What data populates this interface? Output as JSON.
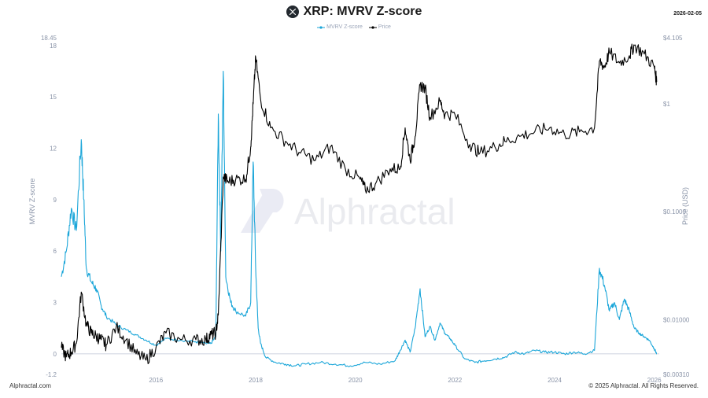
{
  "header": {
    "title": "XRP: MVRV Z-score",
    "date": "2026-02-05",
    "icon": "xrp-logo-icon"
  },
  "legend": [
    {
      "name": "MVRV Z-score",
      "color": "#1ba6d9"
    },
    {
      "name": "Price",
      "color": "#000000"
    }
  ],
  "watermark": "Alphractal",
  "footer": {
    "left": "Alphractal.com",
    "right": "© 2025 Alphractal. All Rights Reserved."
  },
  "chart_data": {
    "type": "line",
    "title": "XRP: MVRV Z-score",
    "left_axis": {
      "label": "MVRV Z-score",
      "range": [
        -1.2,
        18.45
      ],
      "ticks": [
        "18.45",
        "18",
        "15",
        "12",
        "9",
        "6",
        "3",
        "0",
        "-1.2"
      ]
    },
    "right_axis": {
      "label": "Price (USD)",
      "scale": "log",
      "range": [
        0.0031,
        4.105
      ],
      "ticks": [
        "$4.105",
        "$1",
        "$0.1000",
        "$0.01000",
        "$0.00310"
      ]
    },
    "x_axis": {
      "range": [
        2014.1,
        2026.1
      ],
      "ticks": [
        "2016",
        "2018",
        "2020",
        "2022",
        "2024",
        "2026"
      ]
    },
    "grid": false,
    "legend_position": "top-center",
    "series": [
      {
        "name": "MVRV Z-score",
        "color": "#1ba6d9",
        "axis": "left",
        "x": [
          2014.1,
          2014.2,
          2014.3,
          2014.4,
          2014.5,
          2014.55,
          2014.6,
          2014.7,
          2014.8,
          2014.9,
          2015.0,
          2015.2,
          2015.4,
          2015.6,
          2015.8,
          2016.0,
          2016.2,
          2016.5,
          2016.8,
          2017.0,
          2017.1,
          2017.2,
          2017.25,
          2017.3,
          2017.35,
          2017.4,
          2017.5,
          2017.6,
          2017.8,
          2017.9,
          2017.95,
          2018.0,
          2018.05,
          2018.1,
          2018.2,
          2018.4,
          2018.6,
          2018.8,
          2019.0,
          2019.3,
          2019.6,
          2019.9,
          2020.2,
          2020.5,
          2020.8,
          2020.9,
          2021.0,
          2021.1,
          2021.2,
          2021.3,
          2021.4,
          2021.5,
          2021.6,
          2021.7,
          2021.8,
          2021.9,
          2022.0,
          2022.2,
          2022.4,
          2022.6,
          2022.8,
          2023.0,
          2023.2,
          2023.4,
          2023.6,
          2023.8,
          2024.0,
          2024.2,
          2024.4,
          2024.6,
          2024.8,
          2024.9,
          2025.0,
          2025.1,
          2025.2,
          2025.3,
          2025.4,
          2025.5,
          2025.6,
          2025.7,
          2025.8,
          2025.9,
          2026.0,
          2026.05
        ],
        "values": [
          4.5,
          6.0,
          8.5,
          7.2,
          12.5,
          9.0,
          5.0,
          4.2,
          3.8,
          2.8,
          2.2,
          1.7,
          1.4,
          1.1,
          0.8,
          0.5,
          0.9,
          0.8,
          0.7,
          0.6,
          0.6,
          1.0,
          14.0,
          6.0,
          16.5,
          4.5,
          3.0,
          2.5,
          2.2,
          3.0,
          11.2,
          5.0,
          1.5,
          0.6,
          -0.2,
          -0.5,
          -0.6,
          -0.7,
          -0.6,
          -0.5,
          -0.6,
          -0.7,
          -0.5,
          -0.6,
          -0.4,
          0.2,
          0.8,
          0.1,
          1.5,
          3.8,
          1.0,
          1.6,
          0.8,
          1.8,
          1.2,
          0.9,
          0.5,
          -0.3,
          -0.5,
          -0.4,
          -0.3,
          -0.2,
          0.1,
          0.0,
          0.2,
          0.1,
          0.1,
          0.0,
          0.1,
          0.0,
          0.2,
          5.0,
          4.0,
          2.5,
          3.0,
          2.0,
          3.2,
          2.5,
          1.5,
          1.2,
          1.0,
          0.8,
          0.3,
          0.0
        ]
      },
      {
        "name": "Price",
        "color": "#000000",
        "axis": "right",
        "x": [
          2014.1,
          2014.2,
          2014.3,
          2014.4,
          2014.5,
          2014.6,
          2014.7,
          2014.8,
          2014.9,
          2015.0,
          2015.2,
          2015.4,
          2015.6,
          2015.8,
          2016.0,
          2016.2,
          2016.5,
          2016.8,
          2017.0,
          2017.1,
          2017.2,
          2017.25,
          2017.35,
          2017.45,
          2017.6,
          2017.8,
          2017.9,
          2017.95,
          2018.0,
          2018.1,
          2018.3,
          2018.6,
          2018.9,
          2019.2,
          2019.5,
          2019.8,
          2020.1,
          2020.2,
          2020.4,
          2020.7,
          2020.9,
          2021.0,
          2021.1,
          2021.2,
          2021.3,
          2021.4,
          2021.5,
          2021.7,
          2021.8,
          2022.0,
          2022.3,
          2022.5,
          2022.8,
          2023.0,
          2023.3,
          2023.6,
          2023.9,
          2024.2,
          2024.5,
          2024.8,
          2024.9,
          2025.0,
          2025.1,
          2025.3,
          2025.5,
          2025.6,
          2025.8,
          2026.0,
          2026.05
        ],
        "values": [
          0.0055,
          0.0045,
          0.005,
          0.006,
          0.018,
          0.009,
          0.0075,
          0.007,
          0.0065,
          0.0058,
          0.0085,
          0.0065,
          0.0048,
          0.0042,
          0.0055,
          0.0075,
          0.0065,
          0.0065,
          0.0065,
          0.0072,
          0.0075,
          0.011,
          0.21,
          0.19,
          0.2,
          0.2,
          0.4,
          1.0,
          2.7,
          1.1,
          0.6,
          0.45,
          0.35,
          0.3,
          0.4,
          0.25,
          0.2,
          0.16,
          0.18,
          0.25,
          0.25,
          0.6,
          0.3,
          0.5,
          1.5,
          1.4,
          0.75,
          1.05,
          0.8,
          0.8,
          0.42,
          0.35,
          0.4,
          0.45,
          0.5,
          0.55,
          0.6,
          0.52,
          0.55,
          0.6,
          2.5,
          2.2,
          3.0,
          2.4,
          2.8,
          3.5,
          2.9,
          2.2,
          1.6
        ]
      }
    ]
  }
}
